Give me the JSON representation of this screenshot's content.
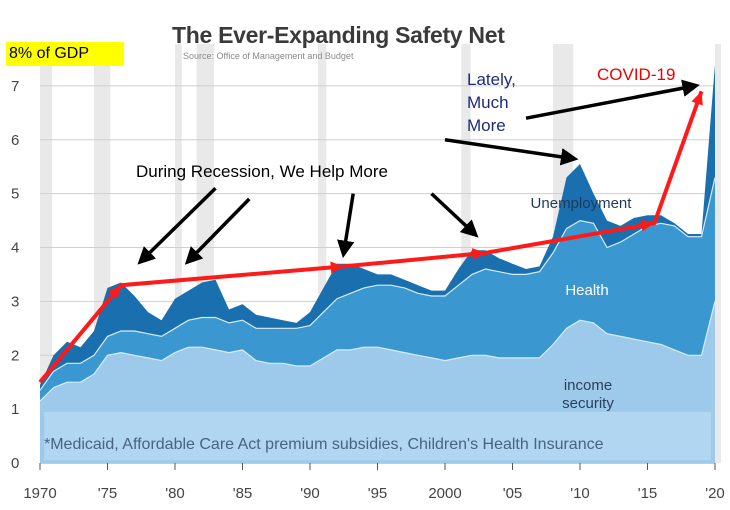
{
  "chart_data": {
    "type": "area",
    "title": "The Ever-Expanding Safety Net",
    "subtitle": "Source: Office of Management and Budget",
    "ylabel": "8% of GDP",
    "xlim": [
      1970,
      2020
    ],
    "ylim": [
      0,
      8
    ],
    "x_tick_labels": [
      "1970",
      "'75",
      "'80",
      "'85",
      "'90",
      "'95",
      "2000",
      "'05",
      "'10",
      "'15",
      "'20"
    ],
    "y_tick_labels": [
      "0",
      "1",
      "2",
      "3",
      "4",
      "5",
      "6",
      "7"
    ],
    "recession_shading": [
      [
        1970,
        1970.9
      ],
      [
        1974,
        1975.2
      ],
      [
        1980,
        1980.5
      ],
      [
        1981.6,
        1982.9
      ],
      [
        1990.6,
        1991.2
      ],
      [
        2001.2,
        2001.9
      ],
      [
        2008,
        2009.5
      ],
      [
        2020,
        2020.4
      ]
    ],
    "x": [
      1970,
      1971,
      1972,
      1973,
      1974,
      1975,
      1976,
      1977,
      1978,
      1979,
      1980,
      1981,
      1982,
      1983,
      1984,
      1985,
      1986,
      1987,
      1988,
      1989,
      1990,
      1991,
      1992,
      1993,
      1994,
      1995,
      1996,
      1997,
      1998,
      1999,
      2000,
      2001,
      2002,
      2003,
      2004,
      2005,
      2006,
      2007,
      2008,
      2009,
      2010,
      2011,
      2012,
      2013,
      2014,
      2015,
      2016,
      2017,
      2018,
      2019,
      2020
    ],
    "series": [
      {
        "name": "income security",
        "color": "#9dc9ea",
        "values": [
          1.15,
          1.4,
          1.5,
          1.5,
          1.65,
          2.0,
          2.05,
          2.0,
          1.95,
          1.9,
          2.05,
          2.15,
          2.15,
          2.1,
          2.05,
          2.1,
          1.9,
          1.85,
          1.85,
          1.8,
          1.8,
          1.95,
          2.1,
          2.1,
          2.15,
          2.15,
          2.1,
          2.05,
          2.0,
          1.95,
          1.9,
          1.95,
          2.0,
          2.0,
          1.95,
          1.95,
          1.95,
          1.95,
          2.2,
          2.5,
          2.65,
          2.6,
          2.4,
          2.35,
          2.3,
          2.25,
          2.2,
          2.1,
          2.0,
          2.0,
          3.0
        ]
      },
      {
        "name": "Health",
        "color": "#3a97d0",
        "values": [
          1.35,
          1.7,
          1.85,
          1.85,
          2.0,
          2.35,
          2.45,
          2.45,
          2.4,
          2.35,
          2.5,
          2.65,
          2.7,
          2.7,
          2.6,
          2.65,
          2.5,
          2.5,
          2.5,
          2.5,
          2.55,
          2.8,
          3.05,
          3.15,
          3.25,
          3.3,
          3.3,
          3.25,
          3.15,
          3.1,
          3.1,
          3.3,
          3.5,
          3.6,
          3.55,
          3.5,
          3.5,
          3.55,
          3.9,
          4.35,
          4.5,
          4.45,
          4.0,
          4.1,
          4.25,
          4.4,
          4.45,
          4.4,
          4.2,
          4.2,
          5.3
        ]
      },
      {
        "name": "Unemployment",
        "color": "#1a6fae",
        "values": [
          1.45,
          2.0,
          2.25,
          2.15,
          2.45,
          3.25,
          3.35,
          3.1,
          2.8,
          2.65,
          3.05,
          3.2,
          3.35,
          3.4,
          2.85,
          2.95,
          2.75,
          2.7,
          2.65,
          2.6,
          2.8,
          3.25,
          3.7,
          3.7,
          3.6,
          3.5,
          3.5,
          3.4,
          3.3,
          3.2,
          3.2,
          3.6,
          3.95,
          3.95,
          3.8,
          3.7,
          3.6,
          3.65,
          4.2,
          5.3,
          5.55,
          5.0,
          4.5,
          4.4,
          4.55,
          4.6,
          4.6,
          4.45,
          4.25,
          4.25,
          7.4
        ]
      }
    ],
    "labels": {
      "unemployment": "Unemployment",
      "health": "Health",
      "income_line1": "income",
      "income_line2": "security"
    },
    "footnote": "*Medicaid, Affordable Care Act premium subsidies, Children's Health Insurance",
    "annotations": {
      "recession": "During Recession, We Help More",
      "lately_line1": "Lately,",
      "lately_line2": "Much",
      "lately_line3": "More",
      "covid": "COVID-19"
    },
    "trend_line": {
      "color": "#ff1a1a",
      "x": [
        1970,
        1976,
        1992.5,
        2003,
        2015.5,
        2019
      ],
      "y": [
        1.5,
        3.3,
        3.65,
        3.9,
        4.45,
        6.9
      ]
    },
    "arrows": [
      {
        "from": [
          1983,
          5.1
        ],
        "to": [
          1977.5,
          3.75
        ]
      },
      {
        "from": [
          1985.5,
          4.9
        ],
        "to": [
          1981,
          3.75
        ]
      },
      {
        "from": [
          1993.2,
          5.0
        ],
        "to": [
          1992.5,
          3.9
        ]
      },
      {
        "from": [
          1999,
          5.0
        ],
        "to": [
          2002.2,
          4.25
        ]
      },
      {
        "from": [
          2000,
          6.0
        ],
        "to": [
          2009.5,
          5.65
        ]
      },
      {
        "from": [
          2006,
          6.4
        ],
        "to": [
          2018.5,
          7.0
        ]
      }
    ]
  }
}
